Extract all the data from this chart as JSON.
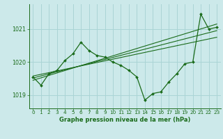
{
  "title": "Graphe pression niveau de la mer (hPa)",
  "background_color": "#cce9ea",
  "grid_color": "#aad4d5",
  "line_color": "#1a6b1a",
  "xlim": [
    -0.5,
    23.5
  ],
  "ylim": [
    1018.6,
    1021.75
  ],
  "yticks": [
    1019,
    1020,
    1021
  ],
  "xticks": [
    0,
    1,
    2,
    3,
    4,
    5,
    6,
    7,
    8,
    9,
    10,
    11,
    12,
    13,
    14,
    15,
    16,
    17,
    18,
    19,
    20,
    21,
    22,
    23
  ],
  "x": [
    0,
    1,
    2,
    3,
    4,
    5,
    6,
    7,
    8,
    9,
    10,
    11,
    12,
    13,
    14,
    15,
    16,
    17,
    18,
    19,
    20,
    21,
    22,
    23
  ],
  "y_main": [
    1019.55,
    1019.3,
    1019.65,
    1019.75,
    1020.05,
    1020.25,
    1020.6,
    1020.35,
    1020.2,
    1020.15,
    1020.0,
    1019.9,
    1019.75,
    1019.55,
    1018.85,
    1019.05,
    1019.1,
    1019.4,
    1019.65,
    1019.95,
    1020.0,
    1021.45,
    1021.0,
    1021.05
  ],
  "trend1_x": [
    0,
    23
  ],
  "trend1_y": [
    1019.45,
    1021.15
  ],
  "trend2_x": [
    0,
    23
  ],
  "trend2_y": [
    1019.52,
    1020.95
  ],
  "trend3_x": [
    0,
    23
  ],
  "trend3_y": [
    1019.58,
    1020.75
  ],
  "tick_fontsize": 5.2,
  "label_fontsize": 6.0
}
